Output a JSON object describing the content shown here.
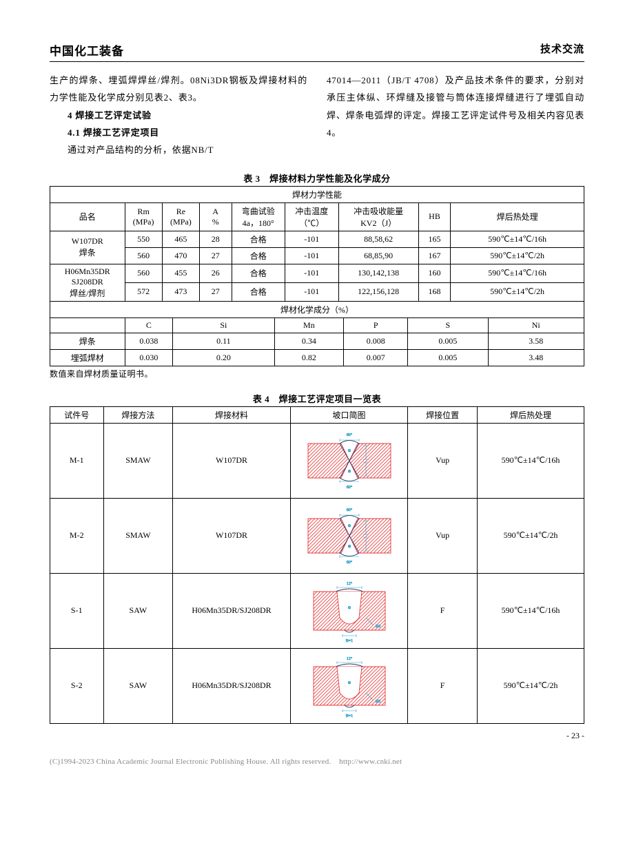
{
  "header": {
    "left": "中国化工装备",
    "right": "技术交流"
  },
  "text": {
    "p1": "生产的焊条、埋弧焊焊丝/焊剂。08Ni3DR钢板及焊接材料的力学性能及化学成分别见表2、表3。",
    "h4": "4 焊接工艺评定试验",
    "h41": "4.1 焊接工艺评定项目",
    "p2a": "通过对产品结构的分析，依据NB/T",
    "p2b": "47014—2011（JB/T 4708）及产品技术条件的要求，分别对承压主体纵、环焊缝及接管与筒体连接焊缝进行了埋弧自动焊、焊条电弧焊的评定。焊接工艺评定试件号及相关内容见表4。"
  },
  "table3": {
    "caption": "表 3　焊接材料力学性能及化学成分",
    "mech_header": "焊材力学性能",
    "chem_header": "焊材化学成分（%）",
    "cols": {
      "name": "品名",
      "rm1": "Rm",
      "rm2": "(MPa)",
      "re1": "Re",
      "re2": "(MPa)",
      "a1": "A",
      "a2": "%",
      "bend1": "弯曲试验",
      "bend2": "4a，180°",
      "imp_t1": "冲击温度",
      "imp_t2": "（℃）",
      "imp_e1": "冲击吸收能量",
      "imp_e2": "KV2（J）",
      "hb": "HB",
      "heat": "焊后热处理"
    },
    "rows": [
      {
        "name": [
          "W107DR",
          "焊条"
        ],
        "rm": "550",
        "re": "465",
        "a": "28",
        "bend": "合格",
        "t": "-101",
        "e": "88,58,62",
        "hb": "165",
        "heat": "590℃±14℃/16h"
      },
      {
        "rm": "560",
        "re": "470",
        "a": "27",
        "bend": "合格",
        "t": "-101",
        "e": "68,85,90",
        "hb": "167",
        "heat": "590℃±14℃/2h"
      },
      {
        "name": [
          "H06Mn35DR",
          "SJ208DR",
          "焊丝/焊剂"
        ],
        "rm": "560",
        "re": "455",
        "a": "26",
        "bend": "合格",
        "t": "-101",
        "e": "130,142,138",
        "hb": "160",
        "heat": "590℃±14℃/16h"
      },
      {
        "rm": "572",
        "re": "473",
        "a": "27",
        "bend": "合格",
        "t": "-101",
        "e": "122,156,128",
        "hb": "168",
        "heat": "590℃±14℃/2h"
      }
    ],
    "chem_cols": [
      "C",
      "Si",
      "Mn",
      "P",
      "S",
      "Ni"
    ],
    "chem_rows": [
      {
        "name": "焊条",
        "v": [
          "0.038",
          "0.11",
          "0.34",
          "0.008",
          "0.005",
          "3.58"
        ]
      },
      {
        "name": "埋弧焊材",
        "v": [
          "0.030",
          "0.20",
          "0.82",
          "0.007",
          "0.005",
          "3.48"
        ]
      }
    ],
    "note": "数值来自焊材质量证明书。"
  },
  "table4": {
    "caption": "表 4　焊接工艺评定项目一览表",
    "cols": {
      "id": "试件号",
      "method": "焊接方法",
      "material": "焊接材料",
      "groove": "坡口简图",
      "pos": "焊接位置",
      "heat": "焊后热处理"
    },
    "rows": [
      {
        "id": "M-1",
        "method": "SMAW",
        "material": "W107DR",
        "groove": "x",
        "pos": "Vup",
        "heat": "590℃±14℃/16h"
      },
      {
        "id": "M-2",
        "method": "SMAW",
        "material": "W107DR",
        "groove": "x",
        "pos": "Vup",
        "heat": "590℃±14℃/2h"
      },
      {
        "id": "S-1",
        "method": "SAW",
        "material": "H06Mn35DR/SJ208DR",
        "groove": "u",
        "pos": "F",
        "heat": "590℃±14℃/16h"
      },
      {
        "id": "S-2",
        "method": "SAW",
        "material": "H06Mn35DR/SJ208DR",
        "groove": "u",
        "pos": "F",
        "heat": "590℃±14℃/2h"
      }
    ]
  },
  "groove_style": {
    "hatch_color": "#e63939",
    "line_color": "#2a3a6a",
    "dim_color": "#2aa0c8",
    "bg_color": "#ffffff",
    "stroke_width": 0.9,
    "width": 140,
    "height_x": 100,
    "height_u": 100
  },
  "page_number": "- 23 -",
  "footer": {
    "text": "(C)1994-2023 China Academic Journal Electronic Publishing House. All rights reserved.",
    "link": "http://www.cnki.net"
  }
}
